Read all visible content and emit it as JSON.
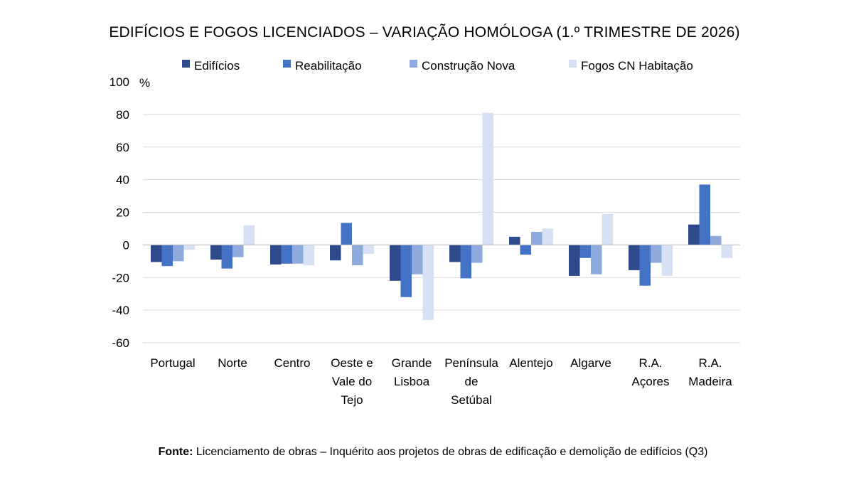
{
  "chart_data": {
    "type": "bar",
    "title": "EDIFÍCIOS E FOGOS LICENCIADOS – VARIAÇÃO HOMÓLOGA (1.º TRIMESTRE DE 2026)",
    "ylabel": "%",
    "ylim": [
      -60,
      100
    ],
    "yticks": [
      100,
      80,
      60,
      40,
      20,
      0,
      -20,
      -40,
      -60
    ],
    "grid": true,
    "legend_position": "top",
    "categories": [
      [
        "Portugal"
      ],
      [
        "Norte"
      ],
      [
        "Centro"
      ],
      [
        "Oeste e",
        "Vale do",
        "Tejo"
      ],
      [
        "Grande",
        "Lisboa"
      ],
      [
        "Península",
        "de",
        "Setúbal"
      ],
      [
        "Alentejo"
      ],
      [
        "Algarve"
      ],
      [
        "R.A.",
        "Açores"
      ],
      [
        "R.A.",
        "Madeira"
      ]
    ],
    "series": [
      {
        "name": "Edifícios",
        "color": "#2e4a8c",
        "values": [
          -10.5,
          -9,
          -12,
          -9.5,
          -22,
          -10.5,
          5,
          -19,
          -15.5,
          12.5
        ]
      },
      {
        "name": "Reabilitação",
        "color": "#4472c4",
        "values": [
          -13,
          -14.5,
          -11.5,
          13.5,
          -32,
          -20.5,
          -6,
          -8,
          -25,
          37
        ]
      },
      {
        "name": "Construção Nova",
        "color": "#8faadc",
        "values": [
          -10,
          -7.5,
          -11.5,
          -12.5,
          -18,
          -11,
          8,
          -18,
          -11,
          5.5
        ]
      },
      {
        "name": "Fogos CN Habitação",
        "color": "#d6e1f3",
        "values": [
          -3,
          12,
          -12.5,
          -5.5,
          -46,
          81,
          10,
          19,
          -19,
          -8
        ]
      }
    ]
  },
  "source": {
    "label": "Fonte:",
    "text": " Licenciamento de obras – Inquérito aos projetos de obras de edificação e demolição de edifícios (Q3)"
  }
}
